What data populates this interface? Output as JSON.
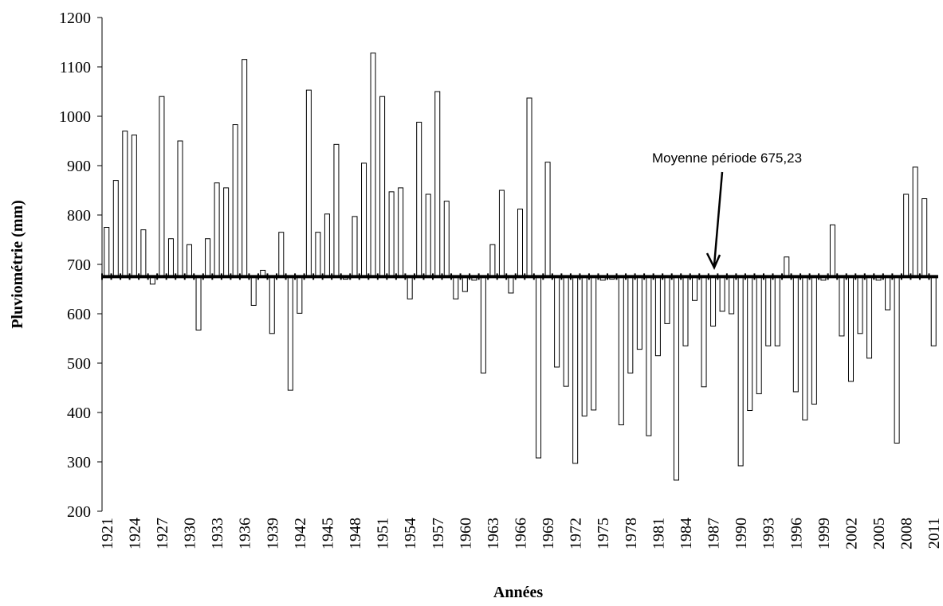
{
  "chart_data": {
    "type": "bar",
    "title_x": "Années",
    "ylabel": "Pluviométrie (mm)",
    "annotation": "Moyenne période 675,23",
    "mean": 675.23,
    "categories": [
      "1921",
      null,
      null,
      "1924",
      null,
      null,
      "1927",
      null,
      null,
      "1930",
      null,
      null,
      "1933",
      null,
      null,
      "1936",
      null,
      null,
      "1939",
      null,
      null,
      "1942",
      null,
      null,
      "1945",
      null,
      null,
      "1948",
      null,
      null,
      "1951",
      null,
      null,
      "1954",
      null,
      null,
      "1957",
      null,
      null,
      "1960",
      null,
      null,
      "1963",
      null,
      null,
      "1966",
      null,
      null,
      "1969",
      null,
      null,
      "1972",
      null,
      null,
      "1975",
      null,
      null,
      "1978",
      null,
      null,
      "1981",
      null,
      null,
      "1984",
      null,
      null,
      "1987",
      null,
      null,
      "1990",
      null,
      null,
      "1993",
      null,
      null,
      "1996",
      null,
      null,
      "1999",
      null,
      null,
      "2002",
      null,
      null,
      "2005",
      null,
      null,
      "2008",
      null,
      null,
      "2011"
    ],
    "values": [
      775,
      870,
      970,
      962,
      770,
      660,
      1040,
      752,
      950,
      740,
      567,
      752,
      865,
      855,
      983,
      1115,
      617,
      688,
      560,
      765,
      445,
      601,
      1053,
      765,
      802,
      943,
      670,
      797,
      905,
      1128,
      1040,
      847,
      855,
      630,
      988,
      842,
      1050,
      828,
      630,
      645,
      668,
      480,
      740,
      850,
      642,
      812,
      1037,
      308,
      907,
      492,
      453,
      297,
      393,
      405,
      668,
      670,
      375,
      480,
      528,
      353,
      515,
      580,
      263,
      535,
      627,
      452,
      575,
      605,
      600,
      292,
      404,
      438,
      535,
      535,
      715,
      442,
      385,
      417,
      668,
      780,
      555,
      463,
      560,
      510,
      668,
      608,
      338,
      842,
      897,
      833,
      535
    ],
    "color": "#ffffff",
    "ylim": [
      200,
      1200
    ],
    "yticks": [
      200,
      300,
      400,
      500,
      600,
      700,
      800,
      900,
      1000,
      1100,
      1200
    ]
  }
}
